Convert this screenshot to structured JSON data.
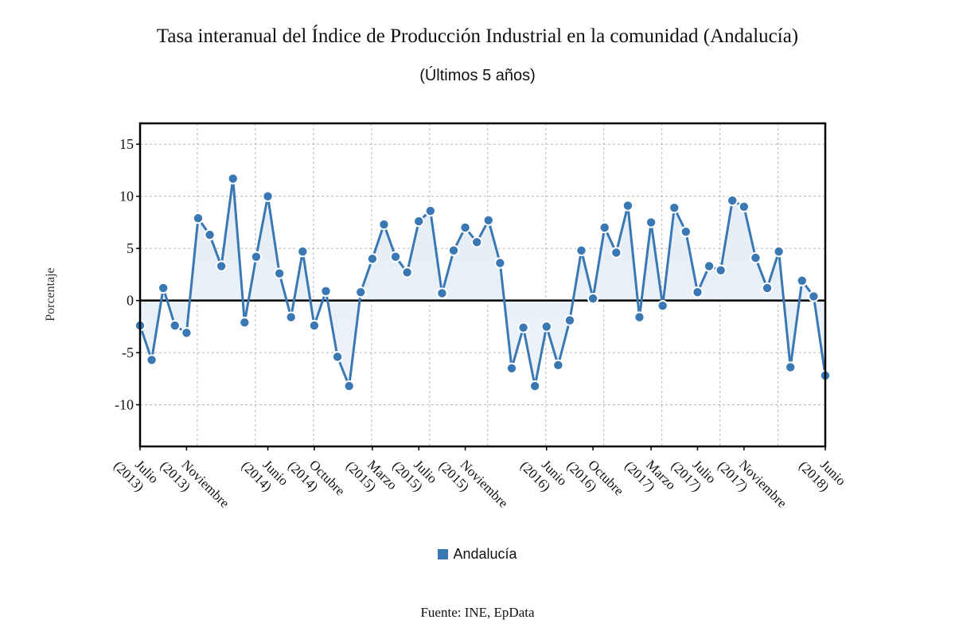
{
  "chart_data": {
    "type": "line",
    "title": "Tasa interanual del Índice de Producción Industrial en la comunidad (Andalucía)",
    "subtitle": "(Últimos 5 años)",
    "xlabel": "",
    "ylabel": "Porcentaje",
    "ylim": [
      -14,
      17
    ],
    "yticks": [
      -10,
      -5,
      0,
      5,
      10,
      15
    ],
    "grid": true,
    "area_fill": true,
    "legend_position": "bottom-center",
    "source": "Fuente: INE, EpData",
    "x_tick_labels": [
      {
        "index": 0,
        "month": "Julio",
        "year": "(2013)"
      },
      {
        "index": 4,
        "month": "Noviembre",
        "year": "(2013)"
      },
      {
        "index": 11,
        "month": "Junio",
        "year": "(2014)"
      },
      {
        "index": 15,
        "month": "Octubre",
        "year": "(2014)"
      },
      {
        "index": 20,
        "month": "Marzo",
        "year": "(2015)"
      },
      {
        "index": 24,
        "month": "Julio",
        "year": "(2015)"
      },
      {
        "index": 28,
        "month": "Noviembre",
        "year": "(2015)"
      },
      {
        "index": 35,
        "month": "Junio",
        "year": "(2016)"
      },
      {
        "index": 39,
        "month": "Octubre",
        "year": "(2016)"
      },
      {
        "index": 44,
        "month": "Marzo",
        "year": "(2017)"
      },
      {
        "index": 48,
        "month": "Julio",
        "year": "(2017)"
      },
      {
        "index": 52,
        "month": "Noviembre",
        "year": "(2017)"
      },
      {
        "index": 59,
        "month": "Junio",
        "year": "(2018)"
      }
    ],
    "x": [
      "2013-07",
      "2013-08",
      "2013-09",
      "2013-10",
      "2013-11",
      "2013-12",
      "2014-01",
      "2014-02",
      "2014-03",
      "2014-04",
      "2014-05",
      "2014-06",
      "2014-07",
      "2014-08",
      "2014-09",
      "2014-10",
      "2014-11",
      "2014-12",
      "2015-01",
      "2015-02",
      "2015-03",
      "2015-04",
      "2015-05",
      "2015-06",
      "2015-07",
      "2015-08",
      "2015-09",
      "2015-10",
      "2015-11",
      "2015-12",
      "2016-01",
      "2016-02",
      "2016-03",
      "2016-04",
      "2016-05",
      "2016-06",
      "2016-07",
      "2016-08",
      "2016-09",
      "2016-10",
      "2016-11",
      "2016-12",
      "2017-01",
      "2017-02",
      "2017-03",
      "2017-04",
      "2017-05",
      "2017-06",
      "2017-07",
      "2017-08",
      "2017-09",
      "2017-10",
      "2017-11",
      "2017-12",
      "2018-01",
      "2018-02",
      "2018-03",
      "2018-04",
      "2018-05",
      "2018-06"
    ],
    "series": [
      {
        "name": "Andalucía",
        "color": "#3a78b4",
        "values": [
          -2.4,
          -5.7,
          1.2,
          -2.4,
          -3.1,
          7.9,
          6.3,
          3.3,
          11.7,
          -2.1,
          4.2,
          10.0,
          2.6,
          -1.6,
          4.7,
          -2.4,
          0.9,
          -5.4,
          -8.2,
          0.8,
          4.0,
          7.3,
          4.2,
          2.7,
          7.6,
          8.6,
          0.7,
          4.8,
          7.0,
          5.6,
          7.7,
          3.6,
          -6.5,
          -2.6,
          -8.2,
          -2.5,
          -6.2,
          -1.9,
          4.8,
          0.2,
          7.0,
          4.6,
          9.1,
          -1.6,
          7.5,
          -0.5,
          8.9,
          6.6,
          0.8,
          3.3,
          2.9,
          9.6,
          9.0,
          4.1,
          1.2,
          4.7,
          -6.4,
          1.9,
          0.4,
          -7.2
        ]
      }
    ]
  },
  "colors": {
    "series": "#3a78b4",
    "fill_top": "#dce7f2",
    "fill_bottom": "#f3f7fb",
    "grid": "#b8b8b8",
    "axis": "#000000"
  }
}
